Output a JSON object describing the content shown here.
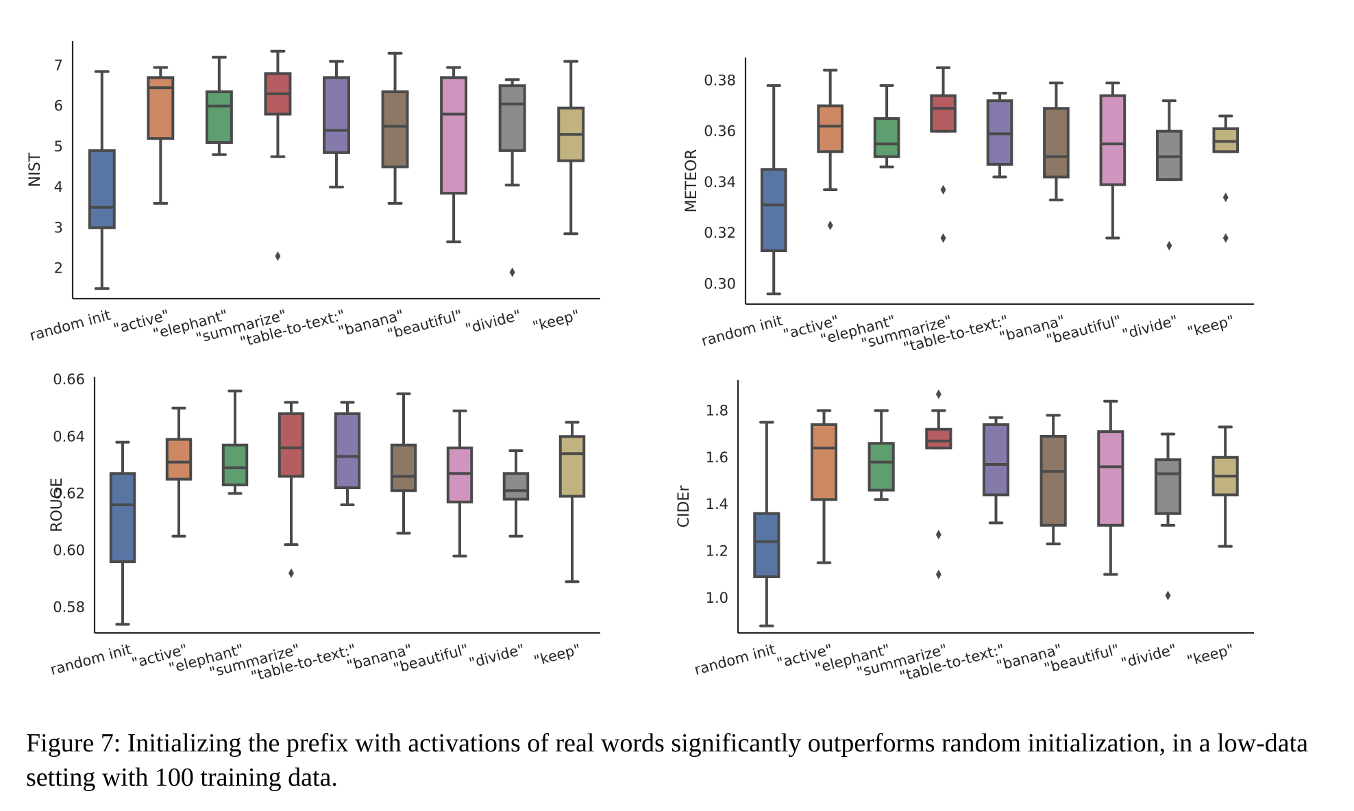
{
  "caption": "Figure 7:  Initializing the prefix with activations of real words significantly outperforms random initialization, in a low-data setting with 100 training data.",
  "colors": [
    "#5875a4",
    "#cc8963",
    "#5f9e6e",
    "#b55d60",
    "#857aab",
    "#8d7866",
    "#d095bf",
    "#8c8c8c",
    "#c1b37f"
  ],
  "chart_data": [
    {
      "type": "boxplot",
      "ylabel": "NIST",
      "categories": [
        "random init",
        "\"active\"",
        "\"elephant\"",
        "\"summarize\"",
        "\"table-to-text:\"",
        "\"banana\"",
        "\"beautiful\"",
        "\"divide\"",
        "\"keep\""
      ],
      "yticks": [
        2,
        3,
        4,
        5,
        6,
        7
      ],
      "ylim": [
        1.25,
        7.6
      ],
      "boxes": [
        {
          "whislo": 1.5,
          "q1": 3.0,
          "med": 3.5,
          "q3": 4.9,
          "whishi": 6.85,
          "fliers": []
        },
        {
          "whislo": 3.6,
          "q1": 5.2,
          "med": 6.45,
          "q3": 6.7,
          "whishi": 6.95,
          "fliers": []
        },
        {
          "whislo": 4.8,
          "q1": 5.1,
          "med": 6.0,
          "q3": 6.35,
          "whishi": 7.2,
          "fliers": []
        },
        {
          "whislo": 4.75,
          "q1": 5.8,
          "med": 6.3,
          "q3": 6.8,
          "whishi": 7.35,
          "fliers": [
            2.3
          ]
        },
        {
          "whislo": 4.0,
          "q1": 4.85,
          "med": 5.4,
          "q3": 6.7,
          "whishi": 7.1,
          "fliers": []
        },
        {
          "whislo": 3.6,
          "q1": 4.5,
          "med": 5.5,
          "q3": 6.35,
          "whishi": 7.3,
          "fliers": []
        },
        {
          "whislo": 2.65,
          "q1": 3.85,
          "med": 5.8,
          "q3": 6.7,
          "whishi": 6.95,
          "fliers": []
        },
        {
          "whislo": 4.05,
          "q1": 4.9,
          "med": 6.05,
          "q3": 6.5,
          "whishi": 6.65,
          "fliers": [
            1.9
          ]
        },
        {
          "whislo": 2.85,
          "q1": 4.65,
          "med": 5.3,
          "q3": 5.95,
          "whishi": 7.1,
          "fliers": []
        }
      ]
    },
    {
      "type": "boxplot",
      "ylabel": "METEOR",
      "categories": [
        "random init",
        "\"active\"",
        "\"elephant\"",
        "\"summarize\"",
        "\"table-to-text:\"",
        "\"banana\"",
        "\"beautiful\"",
        "\"divide\"",
        "\"keep\""
      ],
      "yticks": [
        "0.30",
        "0.32",
        "0.34",
        "0.36",
        "0.38"
      ],
      "ylim": [
        0.292,
        0.389
      ],
      "boxes": [
        {
          "whislo": 0.296,
          "q1": 0.313,
          "med": 0.331,
          "q3": 0.345,
          "whishi": 0.378,
          "fliers": []
        },
        {
          "whislo": 0.337,
          "q1": 0.352,
          "med": 0.362,
          "q3": 0.37,
          "whishi": 0.384,
          "fliers": [
            0.323
          ]
        },
        {
          "whislo": 0.346,
          "q1": 0.35,
          "med": 0.355,
          "q3": 0.365,
          "whishi": 0.378,
          "fliers": []
        },
        {
          "whislo": 0.36,
          "q1": 0.36,
          "med": 0.369,
          "q3": 0.374,
          "whishi": 0.385,
          "fliers": [
            0.337,
            0.318
          ]
        },
        {
          "whislo": 0.342,
          "q1": 0.347,
          "med": 0.359,
          "q3": 0.372,
          "whishi": 0.375,
          "fliers": []
        },
        {
          "whislo": 0.333,
          "q1": 0.342,
          "med": 0.35,
          "q3": 0.369,
          "whishi": 0.379,
          "fliers": []
        },
        {
          "whislo": 0.318,
          "q1": 0.339,
          "med": 0.355,
          "q3": 0.374,
          "whishi": 0.379,
          "fliers": []
        },
        {
          "whislo": 0.341,
          "q1": 0.341,
          "med": 0.35,
          "q3": 0.36,
          "whishi": 0.372,
          "fliers": [
            0.315
          ]
        },
        {
          "whislo": 0.352,
          "q1": 0.352,
          "med": 0.356,
          "q3": 0.361,
          "whishi": 0.366,
          "fliers": [
            0.334,
            0.318
          ]
        }
      ]
    },
    {
      "type": "boxplot",
      "ylabel": "ROUGE",
      "categories": [
        "random init",
        "\"active\"",
        "\"elephant\"",
        "\"summarize\"",
        "\"table-to-text:\"",
        "\"banana\"",
        "\"beautiful\"",
        "\"divide\"",
        "\"keep\""
      ],
      "yticks": [
        "0.58",
        "0.60",
        "0.62",
        "0.64",
        "0.66"
      ],
      "ylim": [
        0.571,
        0.661
      ],
      "boxes": [
        {
          "whislo": 0.574,
          "q1": 0.596,
          "med": 0.616,
          "q3": 0.627,
          "whishi": 0.638,
          "fliers": []
        },
        {
          "whislo": 0.605,
          "q1": 0.625,
          "med": 0.631,
          "q3": 0.639,
          "whishi": 0.65,
          "fliers": []
        },
        {
          "whislo": 0.62,
          "q1": 0.623,
          "med": 0.629,
          "q3": 0.637,
          "whishi": 0.656,
          "fliers": []
        },
        {
          "whislo": 0.602,
          "q1": 0.626,
          "med": 0.636,
          "q3": 0.648,
          "whishi": 0.652,
          "fliers": [
            0.592
          ]
        },
        {
          "whislo": 0.616,
          "q1": 0.622,
          "med": 0.633,
          "q3": 0.648,
          "whishi": 0.652,
          "fliers": []
        },
        {
          "whislo": 0.606,
          "q1": 0.621,
          "med": 0.626,
          "q3": 0.637,
          "whishi": 0.655,
          "fliers": []
        },
        {
          "whislo": 0.598,
          "q1": 0.617,
          "med": 0.627,
          "q3": 0.636,
          "whishi": 0.649,
          "fliers": []
        },
        {
          "whislo": 0.605,
          "q1": 0.618,
          "med": 0.621,
          "q3": 0.627,
          "whishi": 0.635,
          "fliers": []
        },
        {
          "whislo": 0.589,
          "q1": 0.619,
          "med": 0.634,
          "q3": 0.64,
          "whishi": 0.645,
          "fliers": []
        }
      ]
    },
    {
      "type": "boxplot",
      "ylabel": "CIDEr",
      "categories": [
        "random init",
        "\"active\"",
        "\"elephant\"",
        "\"summarize\"",
        "\"table-to-text:\"",
        "\"banana\"",
        "\"beautiful\"",
        "\"divide\"",
        "\"keep\""
      ],
      "yticks": [
        "1.0",
        "1.2",
        "1.4",
        "1.6",
        "1.8"
      ],
      "ylim": [
        0.85,
        1.93
      ],
      "boxes": [
        {
          "whislo": 0.88,
          "q1": 1.09,
          "med": 1.24,
          "q3": 1.36,
          "whishi": 1.75,
          "fliers": []
        },
        {
          "whislo": 1.15,
          "q1": 1.42,
          "med": 1.64,
          "q3": 1.74,
          "whishi": 1.8,
          "fliers": []
        },
        {
          "whislo": 1.42,
          "q1": 1.46,
          "med": 1.58,
          "q3": 1.66,
          "whishi": 1.8,
          "fliers": []
        },
        {
          "whislo": 1.64,
          "q1": 1.64,
          "med": 1.67,
          "q3": 1.72,
          "whishi": 1.8,
          "fliers": [
            1.87,
            1.27,
            1.1
          ]
        },
        {
          "whislo": 1.32,
          "q1": 1.44,
          "med": 1.57,
          "q3": 1.74,
          "whishi": 1.77,
          "fliers": []
        },
        {
          "whislo": 1.23,
          "q1": 1.31,
          "med": 1.54,
          "q3": 1.69,
          "whishi": 1.78,
          "fliers": []
        },
        {
          "whislo": 1.1,
          "q1": 1.31,
          "med": 1.56,
          "q3": 1.71,
          "whishi": 1.84,
          "fliers": []
        },
        {
          "whislo": 1.31,
          "q1": 1.36,
          "med": 1.53,
          "q3": 1.59,
          "whishi": 1.7,
          "fliers": [
            1.01
          ]
        },
        {
          "whislo": 1.22,
          "q1": 1.44,
          "med": 1.52,
          "q3": 1.6,
          "whishi": 1.73,
          "fliers": []
        }
      ]
    }
  ]
}
